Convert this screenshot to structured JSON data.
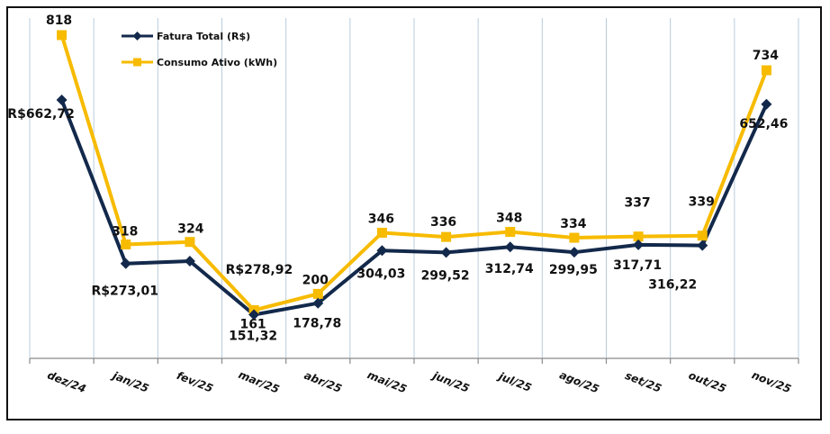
{
  "chart_data": {
    "type": "line",
    "categories": [
      "dez/24",
      "jan/25",
      "fev/25",
      "mar/25",
      "abr/25",
      "mai/25",
      "jun/25",
      "jul/25",
      "ago/25",
      "set/25",
      "out/25",
      "nov/25"
    ],
    "series": [
      {
        "name": "Fatura Total (R$)",
        "color": "#13294b",
        "marker": "diamond",
        "values": [
          662.72,
          273.01,
          278.92,
          151.32,
          178.78,
          304.03,
          299.52,
          312.74,
          299.95,
          317.71,
          316.22,
          652.46
        ],
        "labels": [
          "R$662,72",
          "R$273,01",
          "R$278,92",
          "151,32",
          "178,78",
          "304,03",
          "299,52",
          "312,74",
          "299,95",
          "317,71",
          "316,22",
          "652,46"
        ]
      },
      {
        "name": "Consumo Ativo (kWh)",
        "color": "#f7bb00",
        "marker": "square",
        "values": [
          818,
          318,
          324,
          161,
          200,
          346,
          336,
          348,
          334,
          337,
          339,
          734
        ],
        "labels": [
          "818",
          "318",
          "324",
          "161",
          "200",
          "346",
          "336",
          "348",
          "334",
          "337",
          "339",
          "734"
        ]
      }
    ],
    "legend": "top-left",
    "grid": true
  }
}
